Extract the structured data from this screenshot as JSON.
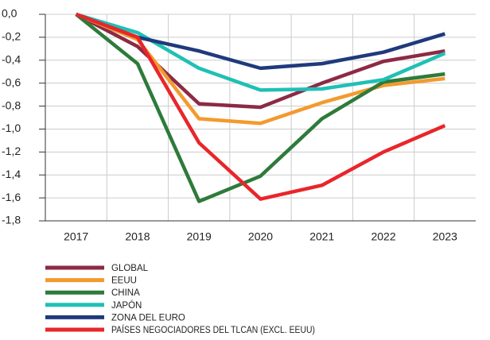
{
  "chart_data": {
    "type": "line",
    "categories": [
      "2017",
      "2018",
      "2019",
      "2020",
      "2021",
      "2022",
      "2023"
    ],
    "series": [
      {
        "name": "GLOBAL",
        "color": "#8c2a45",
        "values": [
          0,
          -0.28,
          -0.78,
          -0.81,
          -0.6,
          -0.41,
          -0.32
        ]
      },
      {
        "name": "EEUU",
        "color": "#f39a2e",
        "values": [
          0,
          -0.22,
          -0.91,
          -0.95,
          -0.77,
          -0.62,
          -0.56
        ]
      },
      {
        "name": "CHINA",
        "color": "#2e7a3a",
        "values": [
          0,
          -0.43,
          -1.63,
          -1.41,
          -0.91,
          -0.59,
          -0.52
        ]
      },
      {
        "name": "JAPÓN",
        "color": "#1fc0b4",
        "values": [
          0,
          -0.16,
          -0.47,
          -0.66,
          -0.65,
          -0.57,
          -0.34
        ]
      },
      {
        "name": "ZONA DEL EURO",
        "color": "#1f3a7c",
        "values": [
          0,
          -0.2,
          -0.32,
          -0.47,
          -0.43,
          -0.33,
          -0.17
        ]
      },
      {
        "name": "PAÍSES NEGOCIADORES DEL TLCAN (EXCL. EEUU)",
        "color": "#e8262b",
        "values": [
          0,
          -0.2,
          -1.12,
          -1.61,
          -1.49,
          -1.2,
          -0.97
        ]
      }
    ],
    "ylim": [
      -1.8,
      0
    ],
    "yticks": [
      {
        "value": 0,
        "label": "0,0"
      },
      {
        "value": -0.2,
        "label": "-0,2"
      },
      {
        "value": -0.4,
        "label": "-0,4"
      },
      {
        "value": -0.6,
        "label": "-0,6"
      },
      {
        "value": -0.8,
        "label": "-0,8"
      },
      {
        "value": -1,
        "label": "-1,0"
      },
      {
        "value": -1.2,
        "label": "-1,2"
      },
      {
        "value": -1.4,
        "label": "-1,4"
      },
      {
        "value": -1.6,
        "label": "-1,6"
      },
      {
        "value": -1.8,
        "label": "-1,8"
      }
    ],
    "grid": true
  }
}
